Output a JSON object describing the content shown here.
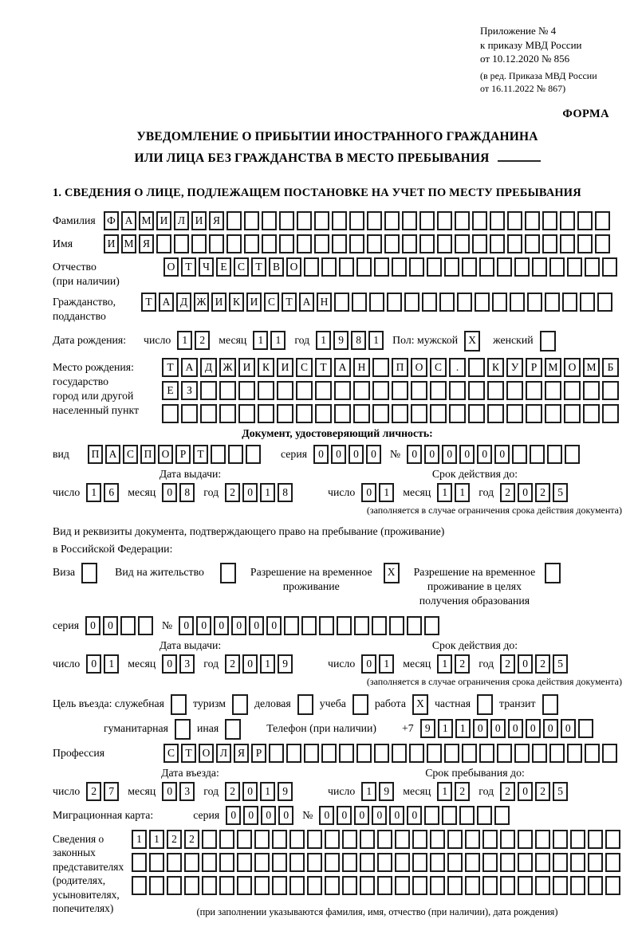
{
  "colors": {
    "ink": "#000000",
    "box_border": "#1c1c1c"
  },
  "header": {
    "ref_lines": "Приложение № 4\nк приказу МВД России\nот 10.12.2020 № 856",
    "ref_amendment": "(в ред. Приказа МВД России\nот 16.11.2022 № 867)",
    "form_label": "ФОРМА"
  },
  "title": {
    "line1": "УВЕДОМЛЕНИЕ О ПРИБЫТИИ ИНОСТРАННОГО ГРАЖДАНИНА",
    "line2": "ИЛИ ЛИЦА БЕЗ ГРАЖДАНСТВА В МЕСТО ПРЕБЫВАНИЯ"
  },
  "section1_heading": "1. СВЕДЕНИЯ О ЛИЦЕ, ПОДЛЕЖАЩЕМ ПОСТАНОВКЕ НА УЧЕТ ПО МЕСТУ ПРЕБЫВАНИЯ",
  "labels": {
    "surname": "Фамилия",
    "name": "Имя",
    "patronymic": "Отчество\n(при наличии)",
    "citizenship": "Гражданство,\nподданство",
    "birth_date": "Дата рождения:",
    "day": "число",
    "month": "месяц",
    "year": "год",
    "sex_male": "Пол: мужской",
    "sex_female": "женский",
    "birth_place": "Место рождения:\nгосударство\nгород или другой\nнаселенный пункт",
    "id_doc_heading": "Документ, удостоверяющий личность:",
    "id_type": "вид",
    "series": "серия",
    "number": "№",
    "issue_date": "Дата выдачи:",
    "valid_until": "Срок действия до:",
    "valid_note": "(заполняется в случае ограничения срока действия документа)",
    "permit_text": "Вид и реквизиты документа, подтверждающего право на пребывание (проживание)\nв Российской Федерации:",
    "visa": "Виза",
    "residence_permit": "Вид на жительство",
    "temp_residence": "Разрешение на временное\nпроживание",
    "temp_residence_edu": "Разрешение на временное\nпроживание в целях\nполучения образования",
    "purpose": "Цель въезда: служебная",
    "tourism": "туризм",
    "business": "деловая",
    "study": "учеба",
    "work": "работа",
    "private": "частная",
    "transit": "транзит",
    "humanitarian": "гуманитарная",
    "other": "иная",
    "phone": "Телефон (при наличии)",
    "phone_prefix": "+7",
    "profession": "Профессия",
    "entry_date": "Дата въезда:",
    "stay_until": "Срок пребывания до:",
    "migration_card": "Миграционная карта:",
    "representatives": "Сведения о\nзаконных\nпредставителях\n(родителях,\nусыновителях,\nпопечителях)",
    "representatives_note": "(при заполнении указываются фамилия, имя, отчество (при наличии), дата рождения)"
  },
  "fields": {
    "surname": {
      "chars": [
        "Ф",
        "А",
        "М",
        "И",
        "Л",
        "И",
        "Я"
      ],
      "total": 29
    },
    "name": {
      "chars": [
        "И",
        "М",
        "Я"
      ],
      "total": 29
    },
    "patronymic": {
      "chars": [
        "О",
        "Т",
        "Ч",
        "Е",
        "С",
        "Т",
        "В",
        "О"
      ],
      "total": 26
    },
    "citizenship": {
      "chars": [
        "Т",
        "А",
        "Д",
        "Ж",
        "И",
        "К",
        "И",
        "С",
        "Т",
        "А",
        "Н"
      ],
      "total": 27
    },
    "birth_day": {
      "chars": [
        "1",
        "2"
      ],
      "total": 2
    },
    "birth_month": {
      "chars": [
        "1",
        "1"
      ],
      "total": 2
    },
    "birth_year": {
      "chars": [
        "1",
        "9",
        "8",
        "1"
      ],
      "total": 4
    },
    "sex_male": {
      "chars": [
        "X"
      ],
      "total": 1
    },
    "sex_female": {
      "chars": [],
      "total": 1
    },
    "birth_place_row1": {
      "chars": [
        "Т",
        "А",
        "Д",
        "Ж",
        "И",
        "К",
        "И",
        "С",
        "Т",
        "А",
        "Н",
        "",
        "П",
        "О",
        "С",
        ".",
        "",
        "К",
        "У",
        "Р",
        "М",
        "О",
        "М",
        "Б"
      ],
      "total": 24
    },
    "birth_place_row2": {
      "chars": [
        "Е",
        "З"
      ],
      "total": 24
    },
    "birth_place_row3": {
      "chars": [],
      "total": 24
    },
    "id_type": {
      "chars": [
        "П",
        "А",
        "С",
        "П",
        "О",
        "Р",
        "Т"
      ],
      "total": 10
    },
    "id_series": {
      "chars": [
        "0",
        "0",
        "0",
        "0"
      ],
      "total": 4
    },
    "id_number": {
      "chars": [
        "0",
        "0",
        "0",
        "0",
        "0",
        "0"
      ],
      "total": 10
    },
    "id_issue_day": {
      "chars": [
        "1",
        "6"
      ],
      "total": 2
    },
    "id_issue_month": {
      "chars": [
        "0",
        "8"
      ],
      "total": 2
    },
    "id_issue_year": {
      "chars": [
        "2",
        "0",
        "1",
        "8"
      ],
      "total": 4
    },
    "id_valid_day": {
      "chars": [
        "0",
        "1"
      ],
      "total": 2
    },
    "id_valid_month": {
      "chars": [
        "1",
        "1"
      ],
      "total": 2
    },
    "id_valid_year": {
      "chars": [
        "2",
        "0",
        "2",
        "5"
      ],
      "total": 4
    },
    "cb_visa": {
      "chars": [],
      "total": 1
    },
    "cb_residence_permit": {
      "chars": [],
      "total": 1
    },
    "cb_temp_residence": {
      "chars": [
        "X"
      ],
      "total": 1
    },
    "cb_temp_residence_edu": {
      "chars": [],
      "total": 1
    },
    "permit_series": {
      "chars": [
        "0",
        "0"
      ],
      "total": 4
    },
    "permit_number": {
      "chars": [
        "0",
        "0",
        "0",
        "0",
        "0",
        "0"
      ],
      "total": 15
    },
    "permit_issue_day": {
      "chars": [
        "0",
        "1"
      ],
      "total": 2
    },
    "permit_issue_month": {
      "chars": [
        "0",
        "3"
      ],
      "total": 2
    },
    "permit_issue_year": {
      "chars": [
        "2",
        "0",
        "1",
        "9"
      ],
      "total": 4
    },
    "permit_valid_day": {
      "chars": [
        "0",
        "1"
      ],
      "total": 2
    },
    "permit_valid_month": {
      "chars": [
        "1",
        "2"
      ],
      "total": 2
    },
    "permit_valid_year": {
      "chars": [
        "2",
        "0",
        "2",
        "5"
      ],
      "total": 4
    },
    "cb_official": {
      "chars": [],
      "total": 1
    },
    "cb_tourism": {
      "chars": [],
      "total": 1
    },
    "cb_business": {
      "chars": [],
      "total": 1
    },
    "cb_study": {
      "chars": [],
      "total": 1
    },
    "cb_work": {
      "chars": [
        "X"
      ],
      "total": 1
    },
    "cb_private": {
      "chars": [],
      "total": 1
    },
    "cb_transit": {
      "chars": [],
      "total": 1
    },
    "cb_humanitarian": {
      "chars": [],
      "total": 1
    },
    "cb_other": {
      "chars": [],
      "total": 1
    },
    "phone": {
      "chars": [
        "9",
        "1",
        "1",
        "0",
        "0",
        "0",
        "0",
        "0",
        "0"
      ],
      "total": 10
    },
    "profession": {
      "chars": [
        "С",
        "Т",
        "О",
        "Л",
        "Я",
        "Р"
      ],
      "total": 26
    },
    "entry_day": {
      "chars": [
        "2",
        "7"
      ],
      "total": 2
    },
    "entry_month": {
      "chars": [
        "0",
        "3"
      ],
      "total": 2
    },
    "entry_year": {
      "chars": [
        "2",
        "0",
        "1",
        "9"
      ],
      "total": 4
    },
    "stay_day": {
      "chars": [
        "1",
        "9"
      ],
      "total": 2
    },
    "stay_month": {
      "chars": [
        "1",
        "2"
      ],
      "total": 2
    },
    "stay_year": {
      "chars": [
        "2",
        "0",
        "2",
        "5"
      ],
      "total": 4
    },
    "mig_series": {
      "chars": [
        "0",
        "0",
        "0",
        "0"
      ],
      "total": 4
    },
    "mig_number": {
      "chars": [
        "0",
        "0",
        "0",
        "0",
        "0",
        "0"
      ],
      "total": 11
    },
    "rep_row1": {
      "chars": [
        "1",
        "1",
        "2",
        "2"
      ],
      "total": 28
    },
    "rep_row2": {
      "chars": [],
      "total": 28
    },
    "rep_row3": {
      "chars": [],
      "total": 28
    }
  }
}
